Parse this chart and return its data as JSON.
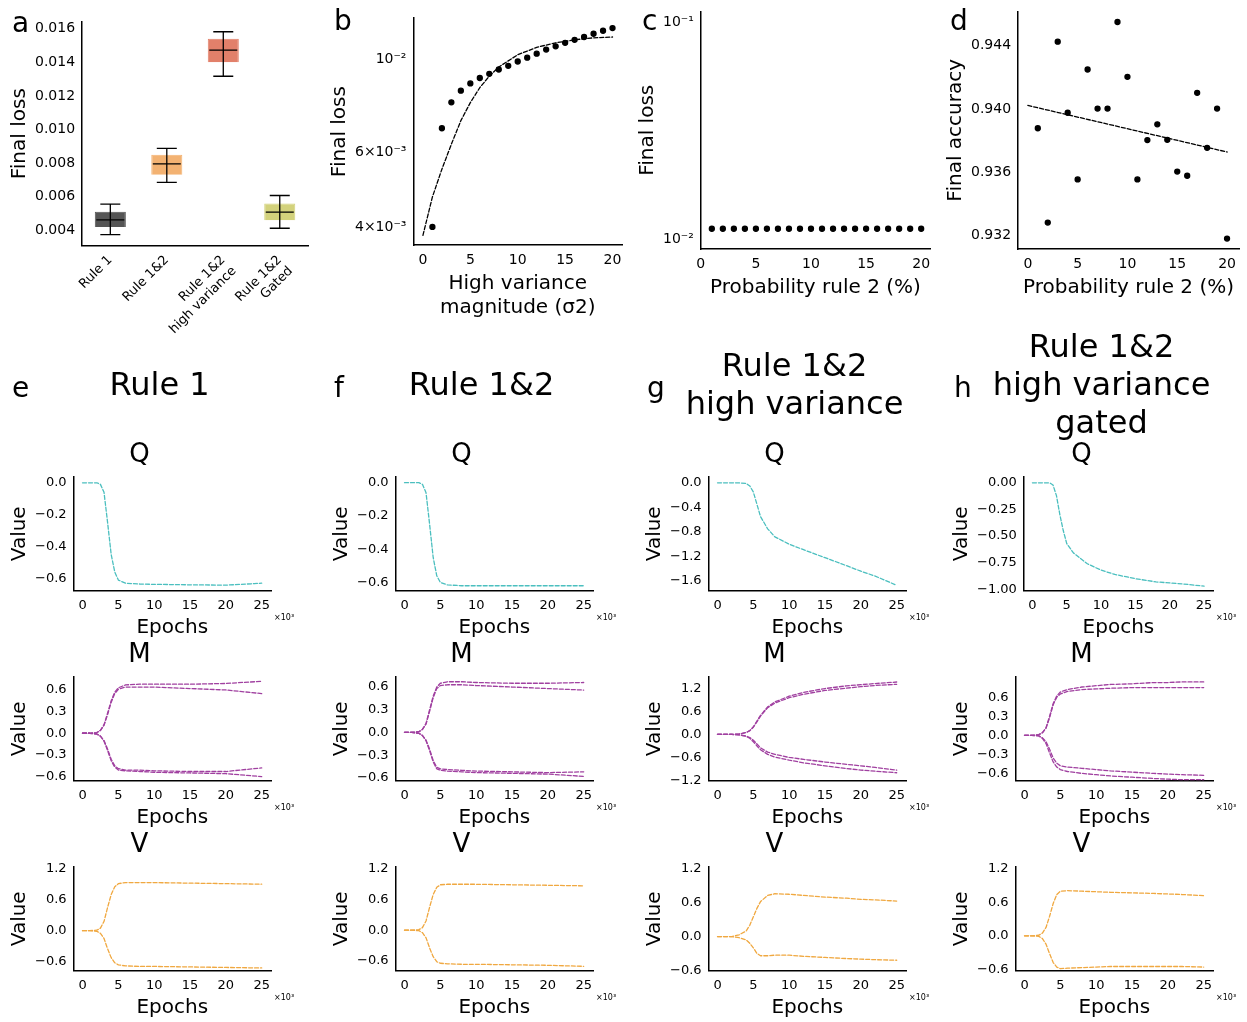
{
  "chart_data": [
    {
      "type": "box",
      "annotations": [
        "a"
      ],
      "ylabel": "Final loss",
      "categories": [
        "Rule 1",
        "Rule 1&2",
        "Rule 1&2\nhigh variance",
        "Rule 1&2\nGated"
      ],
      "colors": [
        "#555555",
        "#f3b272",
        "#e2806a",
        "#d3d27c"
      ],
      "boxes": [
        {
          "low": 0.00374,
          "q1": 0.0042,
          "median": 0.00462,
          "q3": 0.0051,
          "high": 0.00556
        },
        {
          "low": 0.00685,
          "q1": 0.0073,
          "median": 0.00795,
          "q3": 0.0085,
          "high": 0.00888
        },
        {
          "low": 0.01317,
          "q1": 0.014,
          "median": 0.01472,
          "q3": 0.0154,
          "high": 0.01582
        },
        {
          "low": 0.00412,
          "q1": 0.0046,
          "median": 0.00508,
          "q3": 0.0056,
          "high": 0.00607
        }
      ],
      "ylim": [
        0.0031,
        0.0164
      ],
      "yticks": [
        {
          "value": 0.004,
          "label": "0.004"
        },
        {
          "value": 0.006,
          "label": "0.006"
        },
        {
          "value": 0.008,
          "label": "0.008"
        },
        {
          "value": 0.01,
          "label": "0.010"
        },
        {
          "value": 0.012,
          "label": "0.012"
        },
        {
          "value": 0.014,
          "label": "0.014"
        },
        {
          "value": 0.016,
          "label": "0.016"
        }
      ]
    },
    {
      "type": "scatter",
      "annotations": [
        "b"
      ],
      "xlabel": "High variance\nmagnitude (σ2)",
      "ylabel": "Final loss",
      "log": "y",
      "xlim": [
        -1,
        21
      ],
      "xticks": [
        0,
        5,
        10,
        15,
        20
      ],
      "ylim": [
        0.00362,
        0.0125
      ],
      "yticks": [
        {
          "value": 0.004,
          "label": "4×10⁻³"
        },
        {
          "value": 0.006,
          "label": "6×10⁻³"
        },
        {
          "value": 0.01,
          "label": "10⁻²"
        }
      ],
      "series": [
        {
          "type": "scatter",
          "color": "#000000",
          "marker": "circle",
          "x": [
            1,
            2,
            3,
            4,
            5,
            6,
            7,
            8,
            9,
            10,
            11,
            12,
            13,
            14,
            15,
            16,
            17,
            18,
            19,
            20
          ],
          "values": [
            0.004,
            0.00685,
            0.00789,
            0.00841,
            0.00875,
            0.00901,
            0.00922,
            0.00944,
            0.00963,
            0.00986,
            0.01007,
            0.01029,
            0.01052,
            0.01071,
            0.01092,
            0.0111,
            0.01127,
            0.01147,
            0.01166,
            0.01183
          ]
        },
        {
          "type": "line",
          "color": "#000000",
          "marker": "none",
          "line_style": "dashed",
          "x": [
            0,
            1,
            2,
            3,
            4,
            5,
            6,
            7,
            8,
            10,
            12,
            14,
            16,
            18,
            20
          ],
          "values": [
            0.00382,
            0.00471,
            0.00548,
            0.00628,
            0.00714,
            0.00788,
            0.00855,
            0.0091,
            0.00957,
            0.01023,
            0.01065,
            0.01092,
            0.0111,
            0.01122,
            0.01127
          ]
        }
      ]
    },
    {
      "type": "scatter",
      "annotations": [
        "c"
      ],
      "xlabel": "Probability rule 2 (%)",
      "ylabel": "Final loss",
      "log": "y",
      "xlim": [
        0,
        20.8
      ],
      "xticks": [
        0,
        5,
        10,
        15,
        20
      ],
      "ylim": [
        0.00897,
        0.1124
      ],
      "yticks": [
        {
          "value": 0.01,
          "label": "10⁻²"
        },
        {
          "value": 0.1,
          "label": "10⁻¹"
        }
      ],
      "series": [
        {
          "type": "scatter",
          "color": "#000000",
          "marker": "circle",
          "x": [
            1,
            2,
            3,
            4,
            5,
            6,
            7,
            8,
            9,
            10,
            11,
            12,
            13,
            14,
            15,
            16,
            17,
            18,
            19,
            20
          ],
          "values": [
            0.01115,
            0.01115,
            0.01115,
            0.01115,
            0.01115,
            0.01115,
            0.01115,
            0.01115,
            0.01115,
            0.01115,
            0.01115,
            0.01115,
            0.01115,
            0.01115,
            0.01115,
            0.01115,
            0.01115,
            0.01115,
            0.01115,
            0.01115
          ]
        }
      ]
    },
    {
      "type": "scatter",
      "annotations": [
        "d"
      ],
      "xlabel": "Probability rule 2 (%)",
      "ylabel": "Final accuracy",
      "xlim": [
        -0.98,
        21.2
      ],
      "xticks": [
        0,
        5,
        10,
        15,
        20
      ],
      "ylim": [
        0.93115,
        0.94617
      ],
      "yticks": [
        {
          "value": 0.932,
          "label": "0.932"
        },
        {
          "value": 0.936,
          "label": "0.936"
        },
        {
          "value": 0.94,
          "label": "0.940"
        },
        {
          "value": 0.944,
          "label": "0.944"
        }
      ],
      "series": [
        {
          "type": "scatter",
          "color": "#000000",
          "marker": "circle",
          "x": [
            1,
            2,
            3,
            4,
            5,
            6,
            7,
            8,
            9,
            10,
            11,
            12,
            13,
            14,
            15,
            16,
            17,
            18,
            19,
            20
          ],
          "values": [
            0.93879,
            0.93283,
            0.94426,
            0.93977,
            0.93556,
            0.9425,
            0.94003,
            0.94003,
            0.9455,
            0.94204,
            0.93556,
            0.93804,
            0.93904,
            0.93806,
            0.93605,
            0.93579,
            0.94103,
            0.93755,
            0.94003,
            0.93182
          ]
        },
        {
          "type": "line",
          "color": "#000000",
          "marker": "none",
          "line_style": "dashed",
          "x": [
            0,
            20
          ],
          "values": [
            0.94023,
            0.93729
          ]
        }
      ]
    },
    {
      "type": "line",
      "title": "Q",
      "annotations": [
        "e",
        "Rule 1",
        "×10³"
      ],
      "xlabel": "Epochs",
      "ylabel": "Value",
      "marker": "none",
      "line_style": "dashed",
      "xlim": [
        -1.25,
        26.3
      ],
      "xticks": [
        0,
        5,
        10,
        15,
        20,
        25
      ],
      "ylim": [
        -0.675,
        0.035
      ],
      "yticks": [
        {
          "value": 0,
          "label": "0.0"
        },
        {
          "value": -0.2,
          "label": "−0.2"
        },
        {
          "value": -0.4,
          "label": "−0.4"
        },
        {
          "value": -0.6,
          "label": "−0.6"
        }
      ],
      "x": [
        0,
        1,
        2,
        2.5,
        3,
        3.5,
        4,
        4.5,
        5,
        6,
        8,
        10,
        15,
        20,
        25
      ],
      "series": [
        {
          "color": "#4bbfbf",
          "values": [
            0,
            0,
            0,
            -0.01,
            -0.06,
            -0.25,
            -0.45,
            -0.56,
            -0.61,
            -0.63,
            -0.635,
            -0.637,
            -0.64,
            -0.642,
            -0.63
          ]
        }
      ]
    },
    {
      "type": "line",
      "title": "Q",
      "annotations": [
        "f",
        "Rule 1&2",
        "×10³"
      ],
      "xlabel": "Epochs",
      "ylabel": "Value",
      "marker": "none",
      "line_style": "dashed",
      "xlim": [
        -1.25,
        26.3
      ],
      "xticks": [
        0,
        5,
        10,
        15,
        20,
        25
      ],
      "ylim": [
        -0.648,
        0.033
      ],
      "yticks": [
        {
          "value": 0,
          "label": "0.0"
        },
        {
          "value": -0.2,
          "label": "−0.2"
        },
        {
          "value": -0.4,
          "label": "−0.4"
        },
        {
          "value": -0.6,
          "label": "−0.6"
        }
      ],
      "x": [
        0,
        1,
        2,
        2.5,
        3,
        3.5,
        4,
        4.5,
        5,
        6,
        8,
        10,
        15,
        20,
        25
      ],
      "series": [
        {
          "color": "#4bbfbf",
          "values": [
            0,
            0,
            0,
            -0.01,
            -0.06,
            -0.25,
            -0.45,
            -0.56,
            -0.6,
            -0.615,
            -0.62,
            -0.62,
            -0.62,
            -0.62,
            -0.62
          ]
        }
      ]
    },
    {
      "type": "line",
      "title": "Q",
      "annotations": [
        "g",
        "Rule 1&2\nhigh variance",
        "×10³"
      ],
      "xlabel": "Epochs",
      "ylabel": "Value",
      "marker": "none",
      "line_style": "dashed",
      "xlim": [
        -1.25,
        26.3
      ],
      "xticks": [
        0,
        5,
        10,
        15,
        20,
        25
      ],
      "ylim": [
        -1.753,
        0.092
      ],
      "yticks": [
        {
          "value": 0,
          "label": "0.0"
        },
        {
          "value": -0.4,
          "label": "−0.4"
        },
        {
          "value": -0.8,
          "label": "−0.8"
        },
        {
          "value": -1.2,
          "label": "−1.2"
        },
        {
          "value": -1.6,
          "label": "−1.6"
        }
      ],
      "x": [
        0,
        1,
        2,
        3,
        4,
        4.5,
        5,
        5.5,
        6,
        7,
        8,
        10,
        12,
        15,
        18,
        20,
        22,
        25
      ],
      "series": [
        {
          "color": "#4bbfbf",
          "values": [
            0,
            0,
            0,
            0,
            -0.01,
            -0.05,
            -0.15,
            -0.35,
            -0.55,
            -0.75,
            -0.88,
            -1.0,
            -1.09,
            -1.22,
            -1.35,
            -1.44,
            -1.52,
            -1.67
          ]
        }
      ]
    },
    {
      "type": "line",
      "title": "Q",
      "annotations": [
        "h",
        "Rule 1&2\nhigh variance\ngated",
        "×10³"
      ],
      "xlabel": "Epochs",
      "ylabel": "Value",
      "marker": "none",
      "line_style": "dashed",
      "xlim": [
        -1.25,
        26.3
      ],
      "xticks": [
        0,
        5,
        10,
        15,
        20,
        25
      ],
      "ylim": [
        -1.01,
        0.053
      ],
      "yticks": [
        {
          "value": 0,
          "label": "0.00"
        },
        {
          "value": -0.25,
          "label": "−0.25"
        },
        {
          "value": -0.5,
          "label": "−0.50"
        },
        {
          "value": -0.75,
          "label": "−0.75"
        },
        {
          "value": -1,
          "label": "−1.00"
        }
      ],
      "x": [
        0,
        1,
        2,
        2.5,
        3,
        3.5,
        4,
        4.5,
        5,
        6,
        8,
        10,
        12,
        15,
        18,
        20,
        22,
        25
      ],
      "series": [
        {
          "color": "#4bbfbf",
          "values": [
            0,
            0,
            0,
            0,
            -0.02,
            -0.12,
            -0.3,
            -0.45,
            -0.57,
            -0.66,
            -0.76,
            -0.82,
            -0.86,
            -0.9,
            -0.93,
            -0.94,
            -0.95,
            -0.97
          ]
        }
      ]
    },
    {
      "type": "line",
      "title": "M",
      "annotations": [
        "×10³"
      ],
      "xlabel": "Epochs",
      "ylabel": "Value",
      "marker": "none",
      "line_style": "dashed",
      "xlim": [
        -1.25,
        26.3
      ],
      "xticks": [
        0,
        5,
        10,
        15,
        20,
        25
      ],
      "ylim": [
        -0.653,
        0.777
      ],
      "yticks": [
        {
          "value": 0.6,
          "label": "0.6"
        },
        {
          "value": 0.3,
          "label": "0.3"
        },
        {
          "value": 0,
          "label": "0.0"
        },
        {
          "value": -0.3,
          "label": "−0.3"
        },
        {
          "value": -0.6,
          "label": "−0.6"
        }
      ],
      "x": [
        0,
        1,
        2,
        2.5,
        3,
        3.5,
        4,
        4.5,
        5,
        6,
        8,
        10,
        15,
        20,
        25
      ],
      "series": [
        {
          "color": "#a040a0",
          "values": [
            0,
            0,
            0.01,
            0.04,
            0.12,
            0.28,
            0.45,
            0.57,
            0.63,
            0.67,
            0.68,
            0.68,
            0.68,
            0.69,
            0.72
          ]
        },
        {
          "color": "#a040a0",
          "values": [
            0,
            0,
            0.01,
            0.04,
            0.11,
            0.26,
            0.43,
            0.55,
            0.61,
            0.64,
            0.64,
            0.64,
            0.62,
            0.6,
            0.55
          ]
        },
        {
          "color": "#a040a0",
          "values": [
            0,
            0,
            -0.01,
            -0.04,
            -0.1,
            -0.22,
            -0.36,
            -0.45,
            -0.49,
            -0.51,
            -0.51,
            -0.52,
            -0.53,
            -0.53,
            -0.48
          ]
        },
        {
          "color": "#a040a0",
          "values": [
            0,
            0,
            -0.01,
            -0.04,
            -0.11,
            -0.24,
            -0.38,
            -0.47,
            -0.51,
            -0.52,
            -0.53,
            -0.54,
            -0.55,
            -0.56,
            -0.6
          ]
        }
      ]
    },
    {
      "type": "line",
      "title": "M",
      "annotations": [
        "×10³"
      ],
      "xlabel": "Epochs",
      "ylabel": "Value",
      "marker": "none",
      "line_style": "dashed",
      "xlim": [
        -1.25,
        26.3
      ],
      "xticks": [
        0,
        5,
        10,
        15,
        20,
        25
      ],
      "ylim": [
        -0.633,
        0.73
      ],
      "yticks": [
        {
          "value": 0.6,
          "label": "0.6"
        },
        {
          "value": 0.3,
          "label": "0.3"
        },
        {
          "value": 0,
          "label": "0.0"
        },
        {
          "value": -0.3,
          "label": "−0.3"
        },
        {
          "value": -0.6,
          "label": "−0.6"
        }
      ],
      "x": [
        0,
        1,
        2,
        2.5,
        3,
        3.5,
        4,
        4.5,
        5,
        6,
        8,
        10,
        15,
        20,
        25
      ],
      "series": [
        {
          "color": "#a040a0",
          "values": [
            0,
            0,
            0.01,
            0.04,
            0.12,
            0.3,
            0.48,
            0.6,
            0.65,
            0.67,
            0.67,
            0.66,
            0.65,
            0.65,
            0.66
          ]
        },
        {
          "color": "#a040a0",
          "values": [
            0,
            0,
            0.01,
            0.04,
            0.11,
            0.28,
            0.46,
            0.58,
            0.62,
            0.63,
            0.63,
            0.62,
            0.6,
            0.58,
            0.56
          ]
        },
        {
          "color": "#a040a0",
          "values": [
            0,
            0,
            -0.01,
            -0.04,
            -0.1,
            -0.22,
            -0.37,
            -0.46,
            -0.48,
            -0.49,
            -0.5,
            -0.51,
            -0.52,
            -0.53,
            -0.52
          ]
        },
        {
          "color": "#a040a0",
          "values": [
            0,
            0,
            -0.01,
            -0.04,
            -0.11,
            -0.24,
            -0.39,
            -0.48,
            -0.5,
            -0.51,
            -0.52,
            -0.53,
            -0.54,
            -0.55,
            -0.58
          ]
        }
      ]
    },
    {
      "type": "line",
      "title": "M",
      "annotations": [
        "×10³"
      ],
      "xlabel": "Epochs",
      "ylabel": "Value",
      "marker": "none",
      "line_style": "dashed",
      "xlim": [
        -1.25,
        26.3
      ],
      "xticks": [
        0,
        5,
        10,
        15,
        20,
        25
      ],
      "ylim": [
        -1.2,
        1.496
      ],
      "yticks": [
        {
          "value": 1.2,
          "label": "1.2"
        },
        {
          "value": 0.6,
          "label": "0.6"
        },
        {
          "value": 0,
          "label": "0.0"
        },
        {
          "value": -0.6,
          "label": "−0.6"
        },
        {
          "value": -1.2,
          "label": "−1.2"
        }
      ],
      "x": [
        0,
        1,
        2,
        3,
        4,
        4.5,
        5,
        5.5,
        6,
        7,
        8,
        10,
        12,
        15,
        18,
        20,
        22,
        25
      ],
      "series": [
        {
          "color": "#a040a0",
          "values": [
            0,
            0,
            0,
            0.01,
            0.05,
            0.1,
            0.2,
            0.35,
            0.5,
            0.72,
            0.85,
            1.0,
            1.1,
            1.2,
            1.27,
            1.3,
            1.33,
            1.37
          ]
        },
        {
          "color": "#a040a0",
          "values": [
            0,
            0,
            0,
            0.01,
            0.05,
            0.1,
            0.19,
            0.33,
            0.48,
            0.7,
            0.82,
            0.96,
            1.05,
            1.15,
            1.21,
            1.25,
            1.28,
            1.31
          ]
        },
        {
          "color": "#a040a0",
          "values": [
            0,
            0,
            0,
            -0.01,
            -0.04,
            -0.08,
            -0.15,
            -0.25,
            -0.35,
            -0.46,
            -0.52,
            -0.6,
            -0.65,
            -0.72,
            -0.78,
            -0.82,
            -0.86,
            -0.93
          ]
        },
        {
          "color": "#a040a0",
          "values": [
            0,
            0,
            0,
            -0.01,
            -0.05,
            -0.1,
            -0.19,
            -0.3,
            -0.4,
            -0.52,
            -0.59,
            -0.67,
            -0.74,
            -0.82,
            -0.89,
            -0.93,
            -0.96,
            -1.0
          ]
        }
      ]
    },
    {
      "type": "line",
      "title": "M",
      "annotations": [
        "×10³"
      ],
      "xlabel": "Epochs",
      "ylabel": "Value",
      "marker": "none",
      "line_style": "dashed",
      "xlim": [
        -1.25,
        26.3
      ],
      "xticks": [
        0,
        5,
        10,
        15,
        20,
        25
      ],
      "ylim": [
        -0.71,
        0.914
      ],
      "yticks": [
        {
          "value": 0.6,
          "label": "0.6"
        },
        {
          "value": 0.3,
          "label": "0.3"
        },
        {
          "value": 0,
          "label": "0.0"
        },
        {
          "value": -0.3,
          "label": "−0.3"
        },
        {
          "value": -0.6,
          "label": "−0.6"
        }
      ],
      "x": [
        0,
        1,
        2,
        2.5,
        3,
        3.5,
        4,
        4.5,
        5,
        6,
        8,
        10,
        12,
        15,
        18,
        20,
        22,
        25
      ],
      "series": [
        {
          "color": "#a040a0",
          "values": [
            0,
            0,
            0.01,
            0.04,
            0.12,
            0.3,
            0.5,
            0.62,
            0.68,
            0.72,
            0.76,
            0.78,
            0.8,
            0.81,
            0.83,
            0.83,
            0.84,
            0.84
          ]
        },
        {
          "color": "#a040a0",
          "values": [
            0,
            0,
            0.01,
            0.04,
            0.11,
            0.28,
            0.48,
            0.6,
            0.65,
            0.69,
            0.72,
            0.73,
            0.74,
            0.75,
            0.75,
            0.75,
            0.75,
            0.75
          ]
        },
        {
          "color": "#a040a0",
          "values": [
            0,
            0,
            -0.01,
            -0.04,
            -0.1,
            -0.22,
            -0.36,
            -0.44,
            -0.48,
            -0.5,
            -0.52,
            -0.54,
            -0.56,
            -0.58,
            -0.6,
            -0.61,
            -0.62,
            -0.63
          ]
        },
        {
          "color": "#a040a0",
          "values": [
            0,
            0,
            -0.01,
            -0.05,
            -0.13,
            -0.28,
            -0.42,
            -0.5,
            -0.54,
            -0.57,
            -0.6,
            -0.62,
            -0.64,
            -0.66,
            -0.68,
            -0.69,
            -0.7,
            -0.7
          ]
        }
      ]
    },
    {
      "type": "line",
      "title": "V",
      "annotations": [
        "×10³"
      ],
      "xlabel": "Epochs",
      "ylabel": "Value",
      "marker": "none",
      "line_style": "dashed",
      "xlim": [
        -1.25,
        26.3
      ],
      "xticks": [
        0,
        5,
        10,
        15,
        20,
        25
      ],
      "ylim": [
        -0.767,
        1.228
      ],
      "yticks": [
        {
          "value": 1.2,
          "label": "1.2"
        },
        {
          "value": 0.6,
          "label": "0.6"
        },
        {
          "value": 0,
          "label": "0.0"
        },
        {
          "value": -0.6,
          "label": "−0.6"
        }
      ],
      "x": [
        0,
        1,
        2,
        2.5,
        3,
        3.5,
        4,
        4.5,
        5,
        6,
        8,
        10,
        15,
        20,
        25
      ],
      "series": [
        {
          "color": "#f0a840",
          "values": [
            0,
            0,
            0.01,
            0.05,
            0.18,
            0.45,
            0.7,
            0.85,
            0.91,
            0.93,
            0.93,
            0.93,
            0.92,
            0.91,
            0.9
          ]
        },
        {
          "color": "#f0a840",
          "values": [
            0,
            0,
            -0.01,
            -0.05,
            -0.15,
            -0.35,
            -0.52,
            -0.62,
            -0.66,
            -0.68,
            -0.69,
            -0.69,
            -0.7,
            -0.71,
            -0.72
          ]
        }
      ]
    },
    {
      "type": "line",
      "title": "V",
      "annotations": [
        "×10³"
      ],
      "xlabel": "Epochs",
      "ylabel": "Value",
      "marker": "none",
      "line_style": "dashed",
      "xlim": [
        -1.25,
        26.3
      ],
      "xticks": [
        0,
        5,
        10,
        15,
        20,
        25
      ],
      "ylim": [
        -0.79,
        1.235
      ],
      "yticks": [
        {
          "value": 1.2,
          "label": "1.2"
        },
        {
          "value": 0.6,
          "label": "0.6"
        },
        {
          "value": 0,
          "label": "0.0"
        },
        {
          "value": -0.6,
          "label": "−0.6"
        }
      ],
      "x": [
        0,
        1,
        2,
        2.5,
        3,
        3.5,
        4,
        4.5,
        5,
        6,
        8,
        10,
        15,
        20,
        25
      ],
      "series": [
        {
          "color": "#f0a840",
          "values": [
            0,
            0,
            0.01,
            0.05,
            0.18,
            0.45,
            0.7,
            0.84,
            0.89,
            0.9,
            0.9,
            0.9,
            0.89,
            0.88,
            0.87
          ]
        },
        {
          "color": "#f0a840",
          "values": [
            0,
            0,
            -0.01,
            -0.05,
            -0.15,
            -0.35,
            -0.52,
            -0.62,
            -0.65,
            -0.66,
            -0.67,
            -0.67,
            -0.68,
            -0.69,
            -0.71
          ]
        }
      ]
    },
    {
      "type": "line",
      "title": "V",
      "annotations": [
        "×10³"
      ],
      "xlabel": "Epochs",
      "ylabel": "Value",
      "marker": "none",
      "line_style": "dashed",
      "xlim": [
        -1.25,
        26.3
      ],
      "xticks": [
        0,
        5,
        10,
        15,
        20,
        25
      ],
      "ylim": [
        -0.6,
        1.23
      ],
      "yticks": [
        {
          "value": 1.2,
          "label": "1.2"
        },
        {
          "value": 0.6,
          "label": "0.6"
        },
        {
          "value": 0,
          "label": "0.0"
        },
        {
          "value": -0.6,
          "label": "−0.6"
        }
      ],
      "x": [
        0,
        1,
        2,
        3,
        4,
        4.5,
        5,
        5.5,
        6,
        7,
        8,
        10,
        12,
        15,
        18,
        20,
        22,
        25
      ],
      "series": [
        {
          "color": "#f0a840",
          "values": [
            0,
            0,
            0,
            0.03,
            0.1,
            0.2,
            0.35,
            0.5,
            0.62,
            0.73,
            0.76,
            0.75,
            0.73,
            0.7,
            0.68,
            0.66,
            0.65,
            0.63
          ]
        },
        {
          "color": "#f0a840",
          "values": [
            0,
            0,
            0,
            -0.02,
            -0.06,
            -0.12,
            -0.2,
            -0.3,
            -0.34,
            -0.34,
            -0.33,
            -0.33,
            -0.35,
            -0.37,
            -0.39,
            -0.4,
            -0.41,
            -0.42
          ]
        }
      ]
    },
    {
      "type": "line",
      "title": "V",
      "annotations": [
        "×10³"
      ],
      "xlabel": "Epochs",
      "ylabel": "Value",
      "marker": "none",
      "line_style": "dashed",
      "xlim": [
        -1.25,
        26.3
      ],
      "xticks": [
        0,
        5,
        10,
        15,
        20,
        25
      ],
      "ylim": [
        -0.62,
        1.23
      ],
      "yticks": [
        {
          "value": 1.2,
          "label": "1.2"
        },
        {
          "value": 0.6,
          "label": "0.6"
        },
        {
          "value": 0,
          "label": "0.0"
        },
        {
          "value": -0.6,
          "label": "−0.6"
        }
      ],
      "x": [
        0,
        1,
        2,
        2.5,
        3,
        3.5,
        4,
        4.5,
        5,
        6,
        8,
        10,
        12,
        15,
        18,
        20,
        22,
        25
      ],
      "series": [
        {
          "color": "#f0a840",
          "values": [
            0,
            0,
            0.01,
            0.05,
            0.15,
            0.35,
            0.58,
            0.74,
            0.8,
            0.81,
            0.8,
            0.79,
            0.78,
            0.77,
            0.76,
            0.75,
            0.74,
            0.72
          ]
        },
        {
          "color": "#f0a840",
          "values": [
            0,
            0,
            -0.01,
            -0.05,
            -0.15,
            -0.32,
            -0.48,
            -0.56,
            -0.59,
            -0.58,
            -0.57,
            -0.56,
            -0.55,
            -0.55,
            -0.55,
            -0.55,
            -0.55,
            -0.56
          ]
        }
      ]
    }
  ]
}
